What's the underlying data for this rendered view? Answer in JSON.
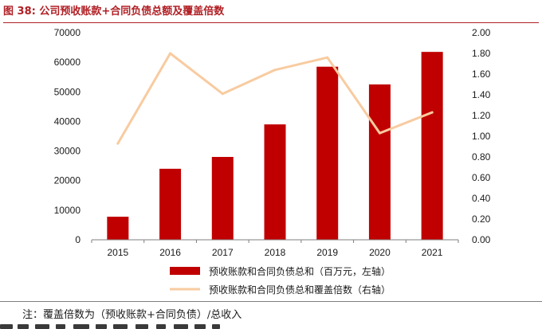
{
  "figure": {
    "title": "图  38:  公司预收账款+合同负债总额及覆盖倍数",
    "note": "注：覆盖倍数为（预收账款+合同负债）/总收入"
  },
  "colors": {
    "title": "#b01f24",
    "bar": "#c00000",
    "line": "#f8cba0",
    "axis": "#7f7f7f",
    "text": "#1a1a1a"
  },
  "chart_data": {
    "type": "bar",
    "title": "",
    "categories": [
      "2015",
      "2016",
      "2017",
      "2018",
      "2019",
      "2020",
      "2021"
    ],
    "series": [
      {
        "name": "预收账款和合同负债总和（百万元，左轴）",
        "type": "bar",
        "axis": "left",
        "values": [
          7800,
          24000,
          28000,
          39000,
          58500,
          52500,
          63500
        ]
      },
      {
        "name": "预收账款和合同负债总和覆盖倍数（右轴）",
        "type": "line",
        "axis": "right",
        "values": [
          0.93,
          1.8,
          1.41,
          1.64,
          1.76,
          1.03,
          1.23
        ]
      }
    ],
    "y_left": {
      "ylim": [
        0,
        70000
      ],
      "ticks": [
        "0",
        "10000",
        "20000",
        "30000",
        "40000",
        "50000",
        "60000",
        "70000"
      ]
    },
    "y_right": {
      "ylim": [
        0,
        2.0
      ],
      "ticks": [
        "0.00",
        "0.20",
        "0.40",
        "0.60",
        "0.80",
        "1.00",
        "1.20",
        "1.40",
        "1.60",
        "1.80",
        "2.00"
      ]
    },
    "grid": false,
    "legend_position": "bottom"
  }
}
